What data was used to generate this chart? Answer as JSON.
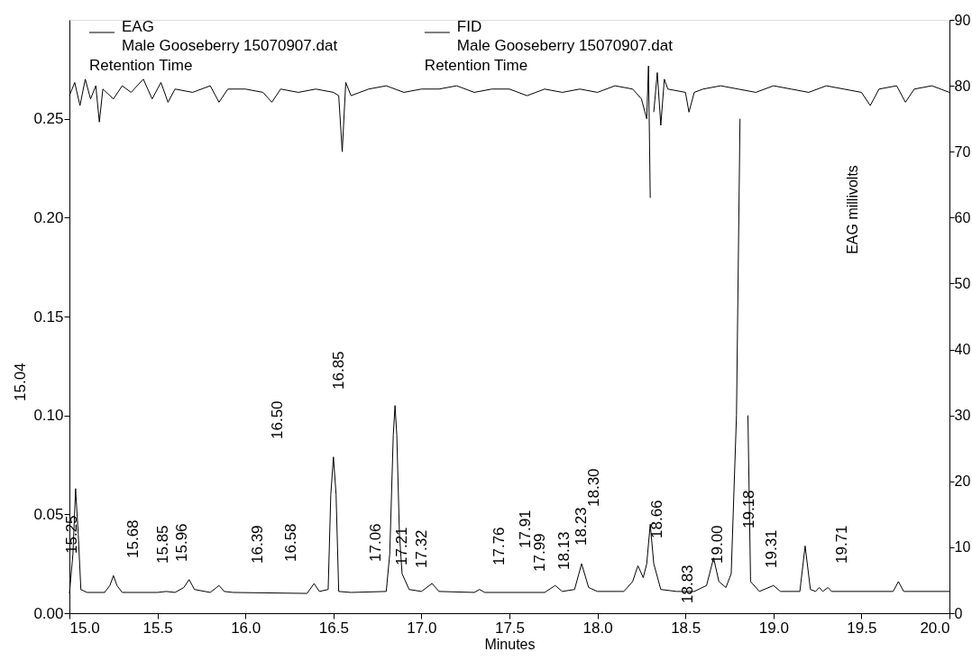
{
  "chart_data": {
    "type": "line",
    "xlabel": "Minutes",
    "y2label": "EAG millivolts",
    "xlim": [
      15,
      20
    ],
    "xticks": [
      {
        "value": 15,
        "label": "15.0"
      },
      {
        "value": 15.5,
        "label": "15.5"
      },
      {
        "value": 16,
        "label": "16.0"
      },
      {
        "value": 16.5,
        "label": "16.5"
      },
      {
        "value": 17,
        "label": "17.0"
      },
      {
        "value": 17.5,
        "label": "17.5"
      },
      {
        "value": 18,
        "label": "18.0"
      },
      {
        "value": 18.5,
        "label": "18.5"
      },
      {
        "value": 19,
        "label": "19.0"
      },
      {
        "value": 19.5,
        "label": "19.5"
      },
      {
        "value": 20,
        "label": "20.0"
      }
    ],
    "ylim": [
      0,
      0.3
    ],
    "yticks": [
      {
        "value": 0,
        "label": "0.00"
      },
      {
        "value": 0.05,
        "label": "0.05"
      },
      {
        "value": 0.1,
        "label": "0.10"
      },
      {
        "value": 0.15,
        "label": "0.15"
      },
      {
        "value": 0.2,
        "label": "0.20"
      },
      {
        "value": 0.25,
        "label": "0.25"
      }
    ],
    "y2lim": [
      0,
      90
    ],
    "y2ticks": [
      0,
      10,
      20,
      30,
      40,
      50,
      60,
      70,
      80,
      90
    ],
    "grid": false,
    "legend": "top",
    "marker": "none",
    "line_style": "solid",
    "series": [
      {
        "name": "EAG\nMale Gooseberry 15070907.dat",
        "color": "#000000",
        "axis": "y2",
        "x": [
          15.0,
          15.03,
          15.06,
          15.09,
          15.12,
          15.15,
          15.17,
          15.19,
          15.25,
          15.3,
          15.35,
          15.42,
          15.47,
          15.52,
          15.56,
          15.6,
          15.7,
          15.8,
          15.85,
          15.9,
          16.0,
          16.1,
          16.15,
          16.2,
          16.3,
          16.4,
          16.5,
          16.53,
          16.55,
          16.57,
          16.6,
          16.7,
          16.8,
          16.9,
          17.0,
          17.1,
          17.2,
          17.3,
          17.4,
          17.5,
          17.6,
          17.7,
          17.8,
          17.9,
          18.0,
          18.1,
          18.2,
          18.25,
          18.28,
          18.29,
          18.3,
          18.31,
          18.32,
          18.34,
          18.36,
          18.38,
          18.4,
          18.5,
          18.52,
          18.55,
          18.6,
          18.7,
          18.8,
          18.9,
          19.0,
          19.1,
          19.2,
          19.3,
          19.4,
          19.5,
          19.55,
          19.6,
          19.7,
          19.75,
          19.8,
          19.9,
          20.0
        ],
        "values": [
          78.5,
          80.5,
          77,
          81,
          78,
          80,
          74.5,
          79.5,
          78,
          80,
          79,
          81,
          78,
          80.5,
          77.5,
          79.5,
          79,
          80,
          77.5,
          79.5,
          79.5,
          79,
          77.5,
          79.5,
          79,
          79.5,
          79,
          78.5,
          70,
          80.5,
          78.5,
          79.5,
          80,
          79,
          79.5,
          79.5,
          80,
          79,
          79.5,
          79.5,
          78.5,
          79.5,
          79,
          79.5,
          79,
          80,
          79.5,
          78,
          75,
          83,
          63,
          null,
          76,
          82,
          74,
          81,
          79.5,
          79,
          76,
          79,
          79.5,
          80,
          79.5,
          79,
          80,
          79.5,
          79,
          80,
          79.5,
          79,
          77,
          79.5,
          80,
          77.5,
          79.5,
          80,
          79
        ]
      },
      {
        "name": "FID\nMale Gooseberry 15070907.dat",
        "color": "#000000",
        "x": [
          15.0,
          15.02,
          15.035,
          15.05,
          15.065,
          15.1,
          15.2,
          15.23,
          15.25,
          15.27,
          15.3,
          15.5,
          15.55,
          15.6,
          15.65,
          15.68,
          15.71,
          15.8,
          15.85,
          15.88,
          15.93,
          16.35,
          16.39,
          16.42,
          16.47,
          16.485,
          16.5,
          16.515,
          16.53,
          16.6,
          16.8,
          16.82,
          16.84,
          16.85,
          16.86,
          16.875,
          16.89,
          16.93,
          17.0,
          17.06,
          17.1,
          17.3,
          17.33,
          17.36,
          17.7,
          17.76,
          17.8,
          17.87,
          17.91,
          17.95,
          18.0,
          18.15,
          18.2,
          18.23,
          18.26,
          18.28,
          18.3,
          18.32,
          18.36,
          18.45,
          18.55,
          18.62,
          18.66,
          18.69,
          18.73,
          18.76,
          18.79,
          18.81,
          18.82,
          18.84,
          18.855,
          18.87,
          18.92,
          19.0,
          19.04,
          19.15,
          19.18,
          19.21,
          19.24,
          19.26,
          19.28,
          19.31,
          19.33,
          19.68,
          19.71,
          19.74,
          20.0
        ],
        "values": [
          0.01,
          0.03,
          0.063,
          0.04,
          0.012,
          0.0105,
          0.0105,
          0.014,
          0.019,
          0.014,
          0.0105,
          0.0105,
          0.011,
          0.0105,
          0.013,
          0.017,
          0.012,
          0.0105,
          0.014,
          0.011,
          0.0105,
          0.01,
          0.015,
          0.011,
          0.012,
          0.06,
          0.079,
          0.06,
          0.011,
          0.0105,
          0.011,
          0.03,
          0.09,
          0.105,
          0.09,
          0.04,
          0.02,
          0.012,
          0.011,
          0.015,
          0.011,
          0.0105,
          0.012,
          0.0105,
          0.0105,
          0.014,
          0.011,
          0.012,
          0.025,
          0.013,
          0.011,
          0.011,
          0.016,
          0.024,
          0.018,
          0.025,
          0.045,
          0.025,
          0.012,
          0.011,
          0.011,
          0.014,
          0.028,
          0.016,
          0.013,
          0.02,
          0.1,
          0.25,
          null,
          null,
          0.1,
          0.016,
          0.011,
          0.014,
          0.011,
          0.011,
          0.034,
          0.012,
          0.011,
          0.013,
          0.011,
          0.013,
          0.011,
          0.011,
          0.016,
          0.011,
          0.011
        ]
      }
    ],
    "annotations": [
      "Retention Time",
      "Retention Time",
      "15.04",
      "15.25",
      "15.68",
      "15.85",
      "15.96",
      "16.39",
      "16.50",
      "16.58",
      "16.85",
      "17.06",
      "17.21",
      "17.32",
      "17.76",
      "17.91",
      "17.99",
      "18.13",
      "18.23",
      "18.30",
      "18.66",
      "18.83",
      "19.00",
      "19.18",
      "19.31",
      "19.71"
    ]
  }
}
